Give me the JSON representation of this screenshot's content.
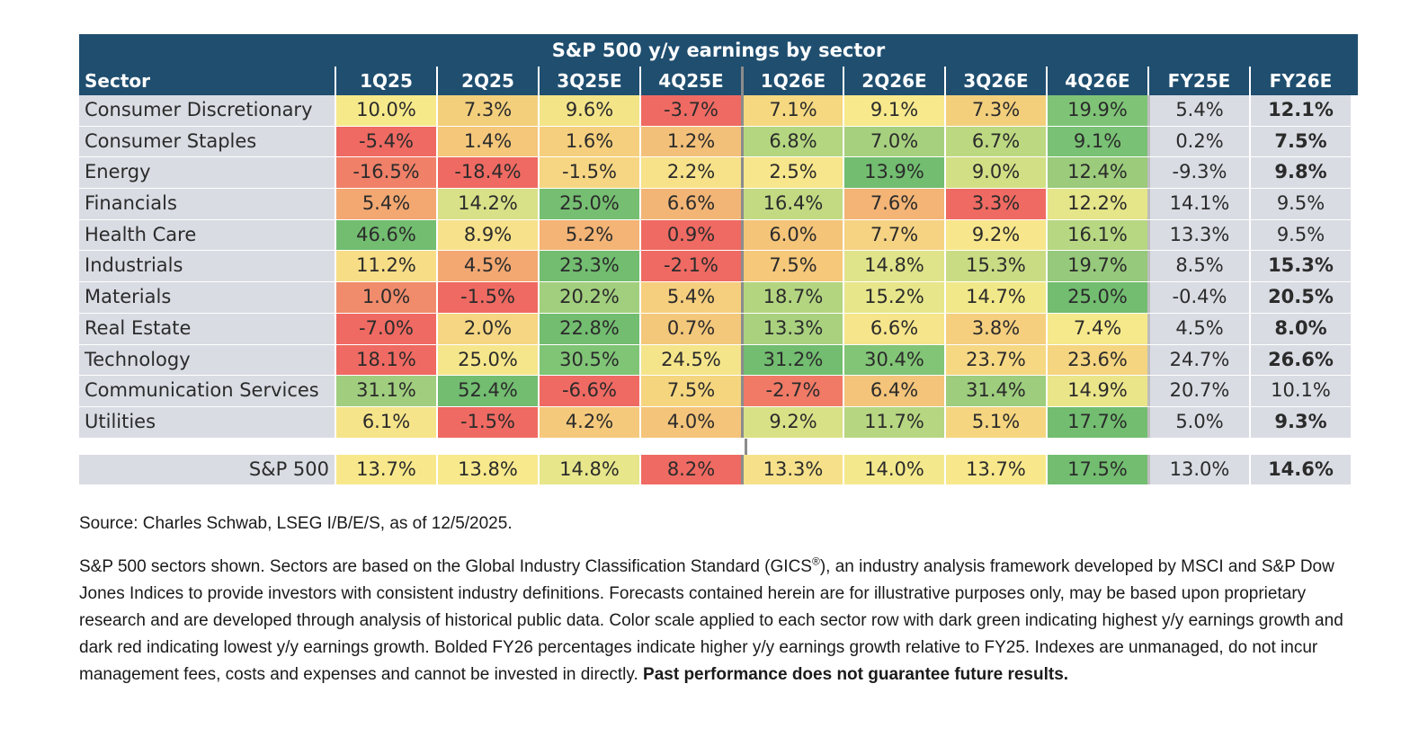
{
  "chart_data": {
    "type": "table",
    "title": "S&P 500 y/y earnings by sector",
    "columns": [
      "Sector",
      "1Q25",
      "2Q25",
      "3Q25E",
      "4Q25E",
      "1Q26E",
      "2Q26E",
      "3Q26E",
      "4Q26E",
      "FY25E",
      "FY26E"
    ],
    "rows": [
      {
        "sector": "Consumer Discretionary",
        "values": [
          "10.0%",
          "7.3%",
          "9.6%",
          "-3.7%",
          "7.1%",
          "9.1%",
          "7.3%",
          "19.9%"
        ],
        "fy25": "5.4%",
        "fy26": "12.1%",
        "fy26_bold": true,
        "colors": [
          "#f6e98a",
          "#f3cf7c",
          "#f3e488",
          "#ef6a62",
          "#f5d880",
          "#f7e98c",
          "#f3cf7c",
          "#7fc476"
        ]
      },
      {
        "sector": "Consumer Staples",
        "values": [
          "-5.4%",
          "1.4%",
          "1.6%",
          "1.2%",
          "6.8%",
          "7.0%",
          "6.7%",
          "9.1%"
        ],
        "fy25": "0.2%",
        "fy26": "7.5%",
        "fy26_bold": true,
        "colors": [
          "#ef6a62",
          "#f4c77a",
          "#f5cf7d",
          "#f3c07a",
          "#b4d680",
          "#a6d07e",
          "#bcd881",
          "#79c174"
        ]
      },
      {
        "sector": "Energy",
        "values": [
          "-16.5%",
          "-18.4%",
          "-1.5%",
          "2.2%",
          "2.5%",
          "13.9%",
          "9.0%",
          "12.4%"
        ],
        "fy25": "-9.3%",
        "fy26": "9.8%",
        "fy26_bold": true,
        "colors": [
          "#f08068",
          "#ef6a62",
          "#f7d683",
          "#f7e28a",
          "#f7e68b",
          "#72bd70",
          "#d3df85",
          "#9bcb7b"
        ]
      },
      {
        "sector": "Financials",
        "values": [
          "5.4%",
          "14.2%",
          "25.0%",
          "6.6%",
          "16.4%",
          "7.6%",
          "3.3%",
          "12.2%"
        ],
        "fy25": "14.1%",
        "fy26": "9.5%",
        "fy26_bold": false,
        "colors": [
          "#f3a872",
          "#d8e187",
          "#76bf72",
          "#f2b575",
          "#c3da83",
          "#f3b475",
          "#ef6a62",
          "#e5e589"
        ]
      },
      {
        "sector": "Health Care",
        "values": [
          "46.6%",
          "8.9%",
          "5.2%",
          "0.9%",
          "6.0%",
          "7.7%",
          "9.2%",
          "16.1%"
        ],
        "fy25": "13.3%",
        "fy26": "9.5%",
        "fy26_bold": false,
        "colors": [
          "#72bd70",
          "#f7e18a",
          "#f3b475",
          "#ef6a62",
          "#f4c479",
          "#f6d382",
          "#f7e68b",
          "#b7d782"
        ]
      },
      {
        "sector": "Industrials",
        "values": [
          "11.2%",
          "4.5%",
          "23.3%",
          "-2.1%",
          "7.5%",
          "14.8%",
          "15.3%",
          "19.7%"
        ],
        "fy25": "8.5%",
        "fy26": "15.3%",
        "fy26_bold": true,
        "colors": [
          "#f7dd86",
          "#f3a872",
          "#72bd70",
          "#ef6a62",
          "#f5c87a",
          "#dfe389",
          "#c9dc84",
          "#96c97b"
        ]
      },
      {
        "sector": "Materials",
        "values": [
          "1.0%",
          "-1.5%",
          "20.2%",
          "5.4%",
          "18.7%",
          "15.2%",
          "14.7%",
          "25.0%"
        ],
        "fy25": "-0.4%",
        "fy26": "20.5%",
        "fy26_bold": true,
        "colors": [
          "#f08c6c",
          "#ef6a62",
          "#a2cf7e",
          "#f6cf7e",
          "#b4d580",
          "#e7e68a",
          "#f1e889",
          "#72bd70"
        ]
      },
      {
        "sector": "Real Estate",
        "values": [
          "-7.0%",
          "2.0%",
          "22.8%",
          "0.7%",
          "13.3%",
          "6.6%",
          "3.8%",
          "7.4%"
        ],
        "fy25": "4.5%",
        "fy26": "8.0%",
        "fy26_bold": true,
        "colors": [
          "#ef6a62",
          "#f6d682",
          "#72bd70",
          "#f4c87a",
          "#a9d17e",
          "#f6e58a",
          "#f5cf7e",
          "#f6e98b"
        ]
      },
      {
        "sector": "Technology",
        "values": [
          "18.1%",
          "25.0%",
          "30.5%",
          "24.5%",
          "31.2%",
          "30.4%",
          "23.7%",
          "23.6%"
        ],
        "fy25": "24.7%",
        "fy26": "26.6%",
        "fy26_bold": true,
        "colors": [
          "#ef6a62",
          "#f6e68b",
          "#80c476",
          "#f5e58a",
          "#72bd70",
          "#82c576",
          "#f6d883",
          "#f5d580"
        ]
      },
      {
        "sector": "Communication Services",
        "values": [
          "31.1%",
          "52.4%",
          "-6.6%",
          "7.5%",
          "-2.7%",
          "6.4%",
          "31.4%",
          "14.9%"
        ],
        "fy25": "20.7%",
        "fy26": "10.1%",
        "fy26_bold": false,
        "colors": [
          "#a0ce7e",
          "#72bd70",
          "#ef6a62",
          "#f5d67f",
          "#f07a66",
          "#f3c47a",
          "#9dcd7d",
          "#ebe58a"
        ]
      },
      {
        "sector": "Utilities",
        "values": [
          "6.1%",
          "-1.5%",
          "4.2%",
          "4.0%",
          "9.2%",
          "11.7%",
          "5.1%",
          "17.7%"
        ],
        "fy25": "5.0%",
        "fy26": "9.3%",
        "fy26_bold": true,
        "colors": [
          "#f6e48a",
          "#ef6a62",
          "#f5c97b",
          "#f4c47a",
          "#d9e187",
          "#b6d681",
          "#f5d57f",
          "#72bd70"
        ]
      }
    ],
    "total": {
      "sector": "S&P 500",
      "values": [
        "13.7%",
        "13.8%",
        "14.8%",
        "8.2%",
        "13.3%",
        "14.0%",
        "13.7%",
        "17.5%"
      ],
      "fy25": "13.0%",
      "fy26": "14.6%",
      "fy26_bold": true,
      "colors": [
        "#f8e88b",
        "#f7e98c",
        "#e7e68a",
        "#ef6a62",
        "#f6e18a",
        "#f3e98c",
        "#f8e88b",
        "#72bd70"
      ]
    }
  },
  "notes": {
    "source": "Source: Charles Schwab, LSEG I/B/E/S, as of 12/5/2025.",
    "disclaimer_pre": "S&P 500 sectors shown. Sectors are based on the Global Industry Classification Standard (GICS",
    "disclaimer_reg": "®",
    "disclaimer_post": "), an industry analysis framework developed by MSCI and S&P Dow Jones Indices to provide investors with consistent industry definitions. Forecasts contained herein are for illustrative purposes only, may be based upon proprietary research and are developed through analysis of historical public data. Color scale applied to each sector row with dark green indicating highest y/y earnings growth and dark red indicating lowest y/y earnings growth. Bolded FY26 percentages indicate higher y/y earnings growth relative to FY25. Indexes are unmanaged, do not incur management fees, costs and expenses and cannot be invested in directly. ",
    "disclaimer_bold": "Past performance does not guarantee future results."
  }
}
